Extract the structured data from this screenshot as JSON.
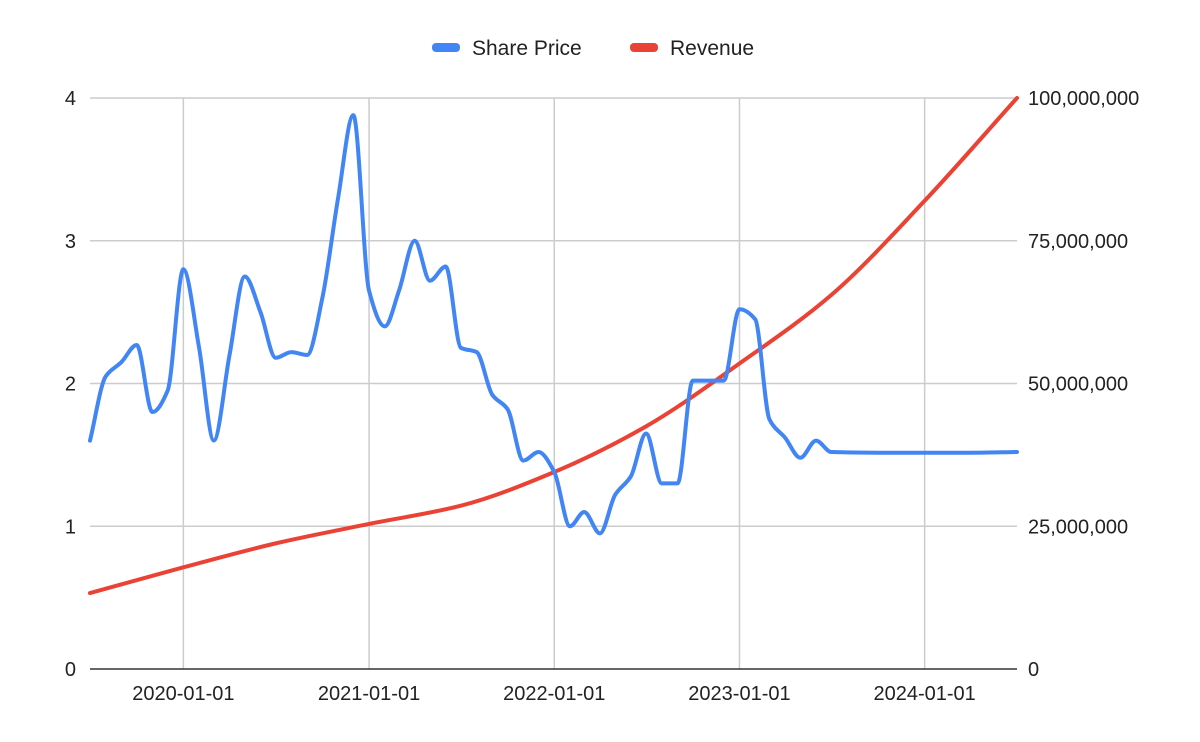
{
  "chart_data": {
    "type": "line",
    "title": "",
    "xlabel": "",
    "ylabel_left": "",
    "ylabel_right": "",
    "legend_position": "top",
    "grid": true,
    "x_ticks": [
      "2020-01-01",
      "2021-01-01",
      "2022-01-01",
      "2023-01-01",
      "2024-01-01"
    ],
    "x_range": [
      "2019-07-01",
      "2024-07-01"
    ],
    "y_left": {
      "min": 0,
      "max": 4,
      "ticks": [
        "0",
        "1",
        "2",
        "3",
        "4"
      ]
    },
    "y_right": {
      "min": 0,
      "max": 100000000,
      "ticks": [
        "0",
        "25,000,000",
        "50,000,000",
        "75,000,000",
        "100,000,000"
      ]
    },
    "series": [
      {
        "name": "Share Price",
        "axis": "left",
        "color": "#4285f4",
        "points": [
          [
            "2019-07-01",
            1.6
          ],
          [
            "2019-08-01",
            2.05
          ],
          [
            "2019-09-01",
            2.15
          ],
          [
            "2019-10-01",
            2.27
          ],
          [
            "2019-11-01",
            1.8
          ],
          [
            "2019-12-01",
            1.95
          ],
          [
            "2020-01-01",
            2.8
          ],
          [
            "2020-02-01",
            2.25
          ],
          [
            "2020-03-01",
            1.6
          ],
          [
            "2020-04-01",
            2.2
          ],
          [
            "2020-05-01",
            2.75
          ],
          [
            "2020-06-01",
            2.5
          ],
          [
            "2020-07-01",
            2.18
          ],
          [
            "2020-08-01",
            2.22
          ],
          [
            "2020-09-01",
            2.2
          ],
          [
            "2020-10-01",
            2.6
          ],
          [
            "2020-11-01",
            3.3
          ],
          [
            "2020-12-01",
            3.88
          ],
          [
            "2021-01-01",
            2.65
          ],
          [
            "2021-02-01",
            2.4
          ],
          [
            "2021-03-01",
            2.65
          ],
          [
            "2021-04-01",
            3.0
          ],
          [
            "2021-05-01",
            2.72
          ],
          [
            "2021-06-01",
            2.82
          ],
          [
            "2021-07-01",
            2.25
          ],
          [
            "2021-08-01",
            2.22
          ],
          [
            "2021-09-01",
            1.92
          ],
          [
            "2021-10-01",
            1.82
          ],
          [
            "2021-11-01",
            1.46
          ],
          [
            "2021-12-01",
            1.52
          ],
          [
            "2022-01-01",
            1.38
          ],
          [
            "2022-02-01",
            1.0
          ],
          [
            "2022-03-01",
            1.1
          ],
          [
            "2022-04-01",
            0.95
          ],
          [
            "2022-05-01",
            1.22
          ],
          [
            "2022-06-01",
            1.35
          ],
          [
            "2022-07-01",
            1.65
          ],
          [
            "2022-08-01",
            1.3
          ],
          [
            "2022-09-01",
            1.3
          ],
          [
            "2022-10-01",
            2.02
          ],
          [
            "2022-11-01",
            2.02
          ],
          [
            "2022-12-01",
            2.02
          ],
          [
            "2023-01-01",
            2.52
          ],
          [
            "2023-02-01",
            2.45
          ],
          [
            "2023-03-01",
            1.75
          ],
          [
            "2023-04-01",
            1.62
          ],
          [
            "2023-05-01",
            1.48
          ],
          [
            "2023-06-01",
            1.6
          ],
          [
            "2023-07-01",
            1.52
          ],
          [
            "2023-10-01",
            1.515
          ],
          [
            "2024-01-01",
            1.515
          ],
          [
            "2024-04-01",
            1.515
          ],
          [
            "2024-07-01",
            1.52
          ]
        ]
      },
      {
        "name": "Revenue",
        "axis": "right",
        "color": "#ea4335",
        "points": [
          [
            "2019-07-01",
            13300000
          ],
          [
            "2020-01-01",
            17800000
          ],
          [
            "2020-07-01",
            22000000
          ],
          [
            "2021-01-01",
            25400000
          ],
          [
            "2021-07-01",
            28600000
          ],
          [
            "2022-01-01",
            34500000
          ],
          [
            "2022-07-01",
            42500000
          ],
          [
            "2023-01-01",
            53500000
          ],
          [
            "2023-07-01",
            65500000
          ],
          [
            "2024-01-01",
            82000000
          ],
          [
            "2024-07-01",
            100000000
          ]
        ]
      }
    ]
  }
}
